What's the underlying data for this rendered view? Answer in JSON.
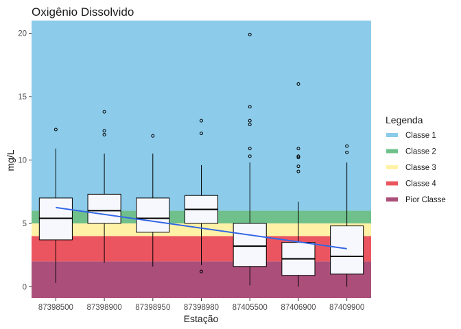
{
  "chart_data": {
    "type": "boxplot",
    "title": "Oxigênio Dissolvido",
    "xlabel": "Estação",
    "ylabel": "mg/L",
    "ylim": [
      -0.9,
      21
    ],
    "yticks": [
      0,
      5,
      10,
      15,
      20
    ],
    "grid": false,
    "categories": [
      "87398500",
      "87398900",
      "87398950",
      "87398980",
      "87405500",
      "87406900",
      "87409900"
    ],
    "boxes": [
      {
        "whisker_low": 0.3,
        "q1": 3.7,
        "median": 5.4,
        "q3": 7.0,
        "whisker_high": 10.9,
        "outliers": [
          12.4
        ]
      },
      {
        "whisker_low": 1.9,
        "q1": 5.0,
        "median": 6.0,
        "q3": 7.3,
        "whisker_high": 10.5,
        "outliers": [
          12.0,
          12.3,
          13.8
        ]
      },
      {
        "whisker_low": 1.6,
        "q1": 4.3,
        "median": 5.4,
        "q3": 7.0,
        "whisker_high": 10.5,
        "outliers": [
          11.9
        ]
      },
      {
        "whisker_low": 1.7,
        "q1": 5.0,
        "median": 6.1,
        "q3": 7.2,
        "whisker_high": 9.6,
        "outliers": [
          1.2,
          12.1,
          13.1
        ]
      },
      {
        "whisker_low": 0.1,
        "q1": 1.6,
        "median": 3.2,
        "q3": 5.0,
        "whisker_high": 9.8,
        "outliers": [
          10.3,
          10.9,
          12.8,
          13.1,
          14.2,
          19.9
        ]
      },
      {
        "whisker_low": 0.0,
        "q1": 0.9,
        "median": 2.2,
        "q3": 3.5,
        "whisker_high": 6.7,
        "outliers": [
          9.1,
          9.5,
          10.2,
          10.3,
          10.9,
          16.0
        ]
      },
      {
        "whisker_low": 0.0,
        "q1": 1.0,
        "median": 2.4,
        "q3": 4.8,
        "whisker_high": 9.8,
        "outliers": [
          10.6,
          11.1
        ]
      }
    ],
    "trend_line": {
      "x_start": "87398500",
      "y_start": 6.25,
      "x_end": "87409900",
      "y_end": 3.0,
      "color": "#3366e6"
    },
    "bands": [
      {
        "name": "Pior Classe",
        "from": -0.9,
        "to": 2,
        "color": "#ab4f7a"
      },
      {
        "name": "Classe 4",
        "from": 2,
        "to": 4,
        "color": "#eb5560"
      },
      {
        "name": "Classe 3",
        "from": 4,
        "to": 5,
        "color": "#fff2a6"
      },
      {
        "name": "Classe 2",
        "from": 5,
        "to": 6,
        "color": "#6fc08b"
      },
      {
        "name": "Classe 1",
        "from": 6,
        "to": 21,
        "color": "#8ccbea"
      }
    ],
    "legend": {
      "title": "Legenda",
      "placement": "right",
      "entries": [
        {
          "label": "Classe 1",
          "color": "#8ccbea"
        },
        {
          "label": "Classe 2",
          "color": "#6fc08b"
        },
        {
          "label": "Classe 3",
          "color": "#fff2a6"
        },
        {
          "label": "Classe 4",
          "color": "#eb5560"
        },
        {
          "label": "Pior Classe",
          "color": "#ab4f7a"
        }
      ]
    },
    "box_fill": "#f7f8fd"
  }
}
